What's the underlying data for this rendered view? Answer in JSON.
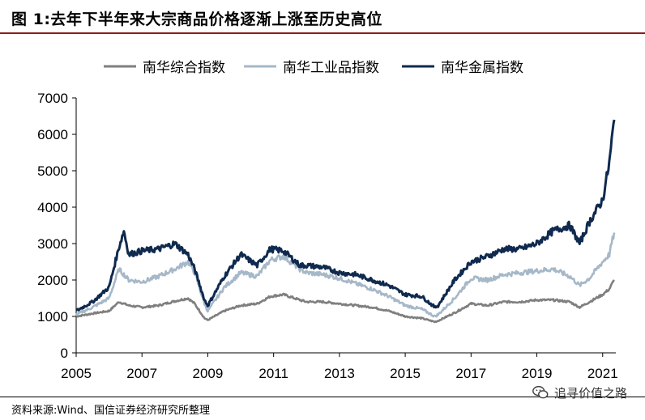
{
  "header": {
    "title": "图 1:去年下半年来大宗商品价格逐渐上涨至历史高位"
  },
  "footer": {
    "source": "资料来源:Wind、国信证券经济研究所整理",
    "watermark": "追寻价值之路",
    "watermark_icon": "wechat-icon"
  },
  "chart_data": {
    "type": "line",
    "title": "",
    "xlabel": "",
    "ylabel": "",
    "xlim": [
      2005,
      2021.4
    ],
    "ylim": [
      0,
      7000
    ],
    "y_ticks": [
      0,
      1000,
      2000,
      3000,
      4000,
      5000,
      6000,
      7000
    ],
    "x_ticks": [
      2005,
      2007,
      2009,
      2011,
      2013,
      2015,
      2017,
      2019,
      2021
    ],
    "x_tick_labels": [
      "2005",
      "2007",
      "2009",
      "2011",
      "2013",
      "2015",
      "2017",
      "2019",
      "2021"
    ],
    "grid": false,
    "legend_position": "top-center",
    "series": [
      {
        "name": "南华综合指数",
        "color": "#7f7f7f",
        "x": [
          2005,
          2005.5,
          2006,
          2006.3,
          2006.6,
          2007,
          2007.5,
          2008,
          2008.4,
          2008.6,
          2008.9,
          2009,
          2009.5,
          2010,
          2010.5,
          2010.9,
          2011.3,
          2011.8,
          2012,
          2012.5,
          2013,
          2013.5,
          2014,
          2014.5,
          2015,
          2015.5,
          2015.9,
          2016,
          2016.5,
          2017,
          2017.5,
          2018,
          2018.5,
          2019,
          2019.5,
          2020,
          2020.3,
          2020.6,
          2021,
          2021.2,
          2021.35
        ],
        "y": [
          1000,
          1080,
          1150,
          1400,
          1300,
          1250,
          1300,
          1420,
          1500,
          1350,
          950,
          900,
          1150,
          1300,
          1350,
          1550,
          1600,
          1450,
          1400,
          1400,
          1350,
          1300,
          1250,
          1150,
          1000,
          950,
          850,
          880,
          1100,
          1350,
          1300,
          1400,
          1400,
          1450,
          1450,
          1400,
          1250,
          1400,
          1600,
          1750,
          2000
        ]
      },
      {
        "name": "南华工业品指数",
        "color": "#a6b8c8",
        "x": [
          2005,
          2005.5,
          2006,
          2006.3,
          2006.6,
          2007,
          2007.5,
          2008,
          2008.4,
          2008.6,
          2008.9,
          2009,
          2009.5,
          2010,
          2010.5,
          2010.9,
          2011.3,
          2011.8,
          2012,
          2012.5,
          2013,
          2013.5,
          2014,
          2014.5,
          2015,
          2015.5,
          2015.9,
          2016,
          2016.5,
          2017,
          2017.5,
          2018,
          2018.5,
          2019,
          2019.5,
          2020,
          2020.3,
          2020.6,
          2021,
          2021.2,
          2021.35
        ],
        "y": [
          1050,
          1250,
          1500,
          2300,
          2000,
          1950,
          2100,
          2300,
          2500,
          2200,
          1350,
          1150,
          1800,
          2200,
          2100,
          2550,
          2650,
          2300,
          2200,
          2150,
          2050,
          1900,
          1750,
          1550,
          1300,
          1200,
          1000,
          1050,
          1500,
          2050,
          2000,
          2150,
          2200,
          2250,
          2300,
          2100,
          1850,
          2050,
          2500,
          2700,
          3300
        ]
      },
      {
        "name": "南华金属指数",
        "color": "#0f2a4e",
        "x": [
          2005,
          2005.5,
          2006,
          2006.3,
          2006.45,
          2006.6,
          2007,
          2007.5,
          2008,
          2008.4,
          2008.6,
          2008.9,
          2009,
          2009.5,
          2010,
          2010.5,
          2010.9,
          2011.3,
          2011.8,
          2012,
          2012.5,
          2013,
          2013.5,
          2014,
          2014.5,
          2015,
          2015.5,
          2015.9,
          2016,
          2016.5,
          2017,
          2017.5,
          2018,
          2018.5,
          2019,
          2019.5,
          2020,
          2020.3,
          2020.6,
          2021,
          2021.2,
          2021.35
        ],
        "y": [
          1150,
          1400,
          1800,
          2900,
          3350,
          2700,
          2800,
          2850,
          3000,
          2700,
          2300,
          1450,
          1300,
          2100,
          2700,
          2400,
          2850,
          2800,
          2400,
          2400,
          2350,
          2200,
          2150,
          2000,
          1850,
          1600,
          1550,
          1250,
          1300,
          2000,
          2500,
          2650,
          2850,
          2850,
          3000,
          3350,
          3500,
          3000,
          3600,
          4200,
          5200,
          6400
        ]
      }
    ]
  }
}
